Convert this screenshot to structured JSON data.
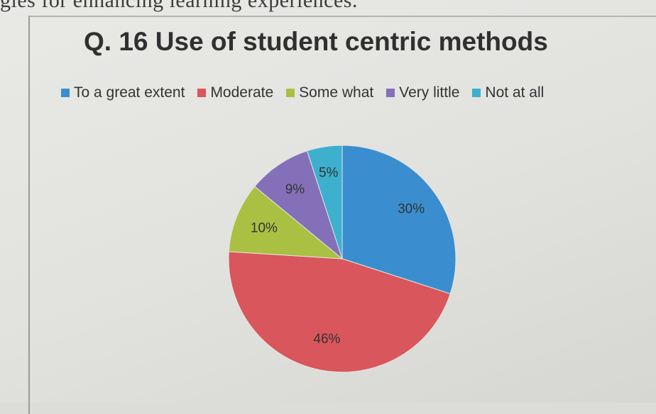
{
  "page": {
    "top_fragment": "gies for enhancing learning experiences."
  },
  "chart_data": {
    "type": "pie",
    "title": "Q. 16 Use of student centric methods",
    "legend_position": "top",
    "slices": [
      {
        "name": "To a great extent",
        "value": 30,
        "label": "30%",
        "color": "#3a8ecf"
      },
      {
        "name": "Moderate",
        "value": 46,
        "label": "46%",
        "color": "#d9565c"
      },
      {
        "name": "Some what",
        "value": 10,
        "label": "10%",
        "color": "#a9c043"
      },
      {
        "name": "Very little",
        "value": 9,
        "label": "9%",
        "color": "#8470b8"
      },
      {
        "name": "Not at all",
        "value": 5,
        "label": "5%",
        "color": "#3cb0cc"
      }
    ]
  }
}
